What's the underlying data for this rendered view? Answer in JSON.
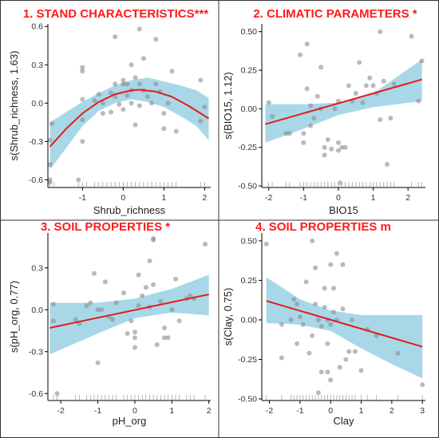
{
  "colors": {
    "band": "#a8d8e8",
    "line": "#e41a1c",
    "points": "#8c8c8c",
    "title": "#ff1a1a"
  },
  "chart_data": [
    {
      "type": "scatter",
      "title": "1. STAND CHARACTERISTICS***",
      "xlabel": "Shrub_richness",
      "ylabel": "s(Shrub_richness, 1.63)",
      "xlim": [
        -1.85,
        2.15
      ],
      "ylim": [
        -0.66,
        0.62
      ],
      "xticks": [
        -1,
        0,
        1,
        2
      ],
      "yticks": [
        -0.6,
        -0.3,
        0.0,
        0.3,
        0.6
      ],
      "ytick_labels": [
        "-0.6",
        "-0.3",
        "0.0",
        "0.3",
        "0.6"
      ],
      "fit": [
        [
          -1.8,
          -0.34
        ],
        [
          -1.4,
          -0.2
        ],
        [
          -1.0,
          -0.08
        ],
        [
          -0.6,
          0.01
        ],
        [
          -0.2,
          0.07
        ],
        [
          0.2,
          0.1
        ],
        [
          0.4,
          0.105
        ],
        [
          0.8,
          0.09
        ],
        [
          1.2,
          0.05
        ],
        [
          1.6,
          -0.02
        ],
        [
          2.1,
          -0.12
        ]
      ],
      "band_upper": [
        [
          -1.8,
          -0.15
        ],
        [
          -1.4,
          -0.07
        ],
        [
          -1.0,
          0.01
        ],
        [
          -0.6,
          0.08
        ],
        [
          -0.2,
          0.14
        ],
        [
          0.2,
          0.18
        ],
        [
          0.6,
          0.2
        ],
        [
          1.0,
          0.17
        ],
        [
          1.4,
          0.14
        ],
        [
          1.8,
          0.1
        ],
        [
          2.1,
          0.04
        ]
      ],
      "band_lower": [
        [
          -1.8,
          -0.52
        ],
        [
          -1.4,
          -0.35
        ],
        [
          -1.0,
          -0.18
        ],
        [
          -0.6,
          -0.06
        ],
        [
          -0.2,
          0.0
        ],
        [
          0.2,
          0.03
        ],
        [
          0.6,
          0.01
        ],
        [
          1.0,
          -0.03
        ],
        [
          1.4,
          -0.1
        ],
        [
          1.8,
          -0.18
        ],
        [
          2.1,
          -0.29
        ]
      ],
      "points": [
        [
          -1.8,
          -0.6
        ],
        [
          -1.8,
          -0.62
        ],
        [
          -1.8,
          -0.48
        ],
        [
          -1.8,
          -0.29
        ],
        [
          -1.75,
          -0.16
        ],
        [
          -1.1,
          -0.6
        ],
        [
          -1.0,
          0.28
        ],
        [
          -1.0,
          0.25
        ],
        [
          -1.0,
          0.03
        ],
        [
          -1.0,
          -0.3
        ],
        [
          -1.0,
          -0.13
        ],
        [
          -0.7,
          0.02
        ],
        [
          -0.6,
          0.07
        ],
        [
          -0.5,
          0.0
        ],
        [
          -0.5,
          -0.08
        ],
        [
          -0.3,
          0.08
        ],
        [
          -0.3,
          -0.07
        ],
        [
          -0.2,
          0.52
        ],
        [
          -0.2,
          0.05
        ],
        [
          -0.2,
          0.15
        ],
        [
          -0.1,
          -0.01
        ],
        [
          0.0,
          0.15
        ],
        [
          0.0,
          0.18
        ],
        [
          0.0,
          -0.05
        ],
        [
          0.1,
          0.15
        ],
        [
          0.1,
          0.06
        ],
        [
          0.2,
          0.3
        ],
        [
          0.2,
          0.1
        ],
        [
          0.2,
          0.0
        ],
        [
          0.3,
          0.2
        ],
        [
          0.3,
          -0.17
        ],
        [
          0.4,
          0.58
        ],
        [
          0.4,
          0.15
        ],
        [
          0.4,
          -0.02
        ],
        [
          0.5,
          0.35
        ],
        [
          0.5,
          0.1
        ],
        [
          0.6,
          0.05
        ],
        [
          0.7,
          0.0
        ],
        [
          0.8,
          0.5
        ],
        [
          0.8,
          0.15
        ],
        [
          0.9,
          0.09
        ],
        [
          1.0,
          -0.08
        ],
        [
          1.0,
          -0.2
        ],
        [
          1.1,
          0.0
        ],
        [
          1.2,
          0.25
        ],
        [
          1.3,
          -0.22
        ],
        [
          1.9,
          0.18
        ],
        [
          1.9,
          -0.14
        ],
        [
          2.0,
          -0.03
        ]
      ],
      "rug": [
        -1.8,
        -1.7,
        -1.1,
        -1.0,
        -0.9,
        -0.7,
        -0.6,
        -0.5,
        -0.4,
        -0.3,
        -0.2,
        -0.1,
        0.0,
        0.1,
        0.2,
        0.3,
        0.4,
        0.5,
        0.6,
        0.7,
        0.8,
        0.9,
        1.0,
        1.1,
        1.2,
        1.3,
        1.9,
        2.0
      ]
    },
    {
      "type": "scatter",
      "title": "2. CLIMATIC PARAMETERS *",
      "xlabel": "BIO15",
      "ylabel": "s(BIO15, 1.12)",
      "xlim": [
        -2.2,
        2.5
      ],
      "ylim": [
        -0.51,
        0.55
      ],
      "xticks": [
        -2,
        -1,
        0,
        1,
        2
      ],
      "yticks": [
        -0.5,
        -0.25,
        0.0,
        0.25,
        0.5
      ],
      "ytick_labels": [
        "-0.50",
        "-0.25",
        "0.00",
        "0.25",
        "0.50"
      ],
      "fit": [
        [
          -2.1,
          -0.1
        ],
        [
          2.4,
          0.19
        ]
      ],
      "band_upper": [
        [
          -2.1,
          0.03
        ],
        [
          -1.0,
          0.03
        ],
        [
          0.0,
          0.04
        ],
        [
          1.0,
          0.1
        ],
        [
          2.4,
          0.32
        ]
      ],
      "band_lower": [
        [
          -2.1,
          -0.22
        ],
        [
          -1.0,
          -0.13
        ],
        [
          0.0,
          -0.04
        ],
        [
          1.0,
          0.01
        ],
        [
          2.4,
          0.05
        ]
      ],
      "points": [
        [
          -2.0,
          0.04
        ],
        [
          -1.9,
          -0.05
        ],
        [
          -1.5,
          -0.16
        ],
        [
          -1.4,
          -0.16
        ],
        [
          -1.1,
          0.35
        ],
        [
          -1.0,
          -0.16
        ],
        [
          -1.0,
          -0.22
        ],
        [
          -0.9,
          0.42
        ],
        [
          -0.9,
          0.13
        ],
        [
          -0.8,
          0.02
        ],
        [
          -0.8,
          -0.11
        ],
        [
          -0.7,
          -0.06
        ],
        [
          -0.6,
          0.08
        ],
        [
          -0.5,
          0.27
        ],
        [
          -0.5,
          0.0
        ],
        [
          -0.4,
          -0.3
        ],
        [
          -0.4,
          -0.25
        ],
        [
          -0.3,
          -0.2
        ],
        [
          -0.2,
          -0.26
        ],
        [
          -0.1,
          0.0
        ],
        [
          0.0,
          0.05
        ],
        [
          0.0,
          -0.22
        ],
        [
          0.0,
          -0.27
        ],
        [
          0.05,
          -0.48
        ],
        [
          0.1,
          -0.25
        ],
        [
          0.2,
          -0.25
        ],
        [
          0.3,
          0.15
        ],
        [
          0.4,
          0.05
        ],
        [
          0.5,
          0.1
        ],
        [
          0.6,
          0.3
        ],
        [
          0.7,
          0.04
        ],
        [
          0.8,
          0.15
        ],
        [
          0.9,
          0.2
        ],
        [
          1.0,
          0.15
        ],
        [
          1.1,
          0.1
        ],
        [
          1.2,
          0.5
        ],
        [
          1.2,
          -0.07
        ],
        [
          1.3,
          0.18
        ],
        [
          1.4,
          -0.36
        ],
        [
          1.5,
          -0.06
        ],
        [
          1.6,
          0.16
        ],
        [
          2.1,
          0.47
        ],
        [
          2.3,
          0.05
        ],
        [
          2.4,
          0.31
        ]
      ],
      "rug": [
        -2.0,
        -1.9,
        -1.5,
        -1.4,
        -1.1,
        -1.0,
        -0.9,
        -0.8,
        -0.7,
        -0.6,
        -0.5,
        -0.4,
        -0.3,
        -0.2,
        -0.1,
        0.0,
        0.1,
        0.2,
        0.3,
        0.4,
        0.5,
        0.6,
        0.7,
        0.8,
        0.9,
        1.0,
        1.1,
        1.2,
        1.3,
        1.4,
        1.5,
        1.6,
        2.1,
        2.3,
        2.4
      ]
    },
    {
      "type": "scatter",
      "title": "3. SOIL PROPERTIES *",
      "xlabel": "pH_org",
      "ylabel": "s(pH_org, 0.77)",
      "xlim": [
        -2.35,
        2.05
      ],
      "ylim": [
        -0.65,
        0.55
      ],
      "xticks": [
        -2,
        -1,
        0,
        1,
        2
      ],
      "yticks": [
        -0.6,
        -0.3,
        0.0,
        0.3
      ],
      "ytick_labels": [
        "-0.6",
        "-0.3",
        "0.0",
        "0.3"
      ],
      "fit": [
        [
          -2.3,
          -0.13
        ],
        [
          2.0,
          0.11
        ]
      ],
      "band_upper": [
        [
          -2.3,
          0.05
        ],
        [
          -1.0,
          0.05
        ],
        [
          0.0,
          0.08
        ],
        [
          1.0,
          0.15
        ],
        [
          2.0,
          0.25
        ]
      ],
      "band_lower": [
        [
          -2.3,
          -0.32
        ],
        [
          -1.0,
          -0.17
        ],
        [
          0.0,
          -0.06
        ],
        [
          1.0,
          -0.02
        ],
        [
          2.0,
          -0.04
        ]
      ],
      "points": [
        [
          -2.2,
          0.04
        ],
        [
          -2.2,
          -0.08
        ],
        [
          -2.1,
          -0.6
        ],
        [
          -1.6,
          -0.07
        ],
        [
          -1.5,
          -0.1
        ],
        [
          -1.3,
          0.03
        ],
        [
          -1.2,
          0.05
        ],
        [
          -1.1,
          0.26
        ],
        [
          -1.0,
          -0.38
        ],
        [
          -1.0,
          0.0
        ],
        [
          -0.9,
          0.0
        ],
        [
          -0.8,
          0.2
        ],
        [
          -0.7,
          -0.05
        ],
        [
          -0.6,
          -0.07
        ],
        [
          -0.5,
          0.05
        ],
        [
          -0.3,
          0.12
        ],
        [
          -0.2,
          -0.17
        ],
        [
          -0.1,
          -0.08
        ],
        [
          0.0,
          -0.2
        ],
        [
          0.0,
          -0.27
        ],
        [
          0.0,
          -0.16
        ],
        [
          0.1,
          0.25
        ],
        [
          0.1,
          0.03
        ],
        [
          0.2,
          0.1
        ],
        [
          0.3,
          0.16
        ],
        [
          0.4,
          0.35
        ],
        [
          0.4,
          0.02
        ],
        [
          0.5,
          0.51
        ],
        [
          0.5,
          0.5
        ],
        [
          0.5,
          0.18
        ],
        [
          0.6,
          -0.25
        ],
        [
          0.7,
          0.06
        ],
        [
          0.8,
          -0.13
        ],
        [
          0.8,
          -0.2
        ],
        [
          0.9,
          -0.2
        ],
        [
          1.0,
          0.0
        ],
        [
          1.1,
          0.22
        ],
        [
          1.2,
          -0.08
        ],
        [
          1.4,
          0.08
        ],
        [
          1.5,
          0.1
        ],
        [
          1.6,
          0.08
        ],
        [
          1.9,
          0.47
        ]
      ],
      "rug": [
        -2.2,
        -2.1,
        -1.6,
        -1.5,
        -1.3,
        -1.2,
        -1.1,
        -1.0,
        -0.9,
        -0.8,
        -0.7,
        -0.6,
        -0.5,
        -0.3,
        -0.2,
        -0.1,
        0.0,
        0.1,
        0.2,
        0.3,
        0.4,
        0.5,
        0.6,
        0.7,
        0.8,
        0.9,
        1.0,
        1.1,
        1.2,
        1.4,
        1.5,
        1.6,
        1.9
      ]
    },
    {
      "type": "scatter",
      "title": "4. SOIL PROPERTIES m",
      "xlabel": "Clay",
      "ylabel": "s(Clay, 0.75)",
      "xlim": [
        -2.25,
        3.1
      ],
      "ylim": [
        -0.51,
        0.55
      ],
      "xticks": [
        -2,
        -1,
        0,
        1,
        2,
        3
      ],
      "yticks": [
        -0.5,
        -0.25,
        0.0,
        0.25,
        0.5
      ],
      "ytick_labels": [
        "-0.50",
        "-0.25",
        "0.00",
        "0.25",
        "0.50"
      ],
      "fit": [
        [
          -2.1,
          0.12
        ],
        [
          3.0,
          -0.17
        ]
      ],
      "band_upper": [
        [
          -2.1,
          0.27
        ],
        [
          -1.0,
          0.13
        ],
        [
          0.0,
          0.06
        ],
        [
          1.0,
          0.03
        ],
        [
          2.0,
          0.03
        ],
        [
          3.0,
          0.03
        ]
      ],
      "band_lower": [
        [
          -2.1,
          -0.02
        ],
        [
          -1.0,
          -0.03
        ],
        [
          0.0,
          -0.07
        ],
        [
          1.0,
          -0.18
        ],
        [
          2.0,
          -0.28
        ],
        [
          3.0,
          -0.37
        ]
      ],
      "points": [
        [
          -2.1,
          0.48
        ],
        [
          -1.6,
          -0.03
        ],
        [
          -1.6,
          -0.24
        ],
        [
          -1.3,
          0.0
        ],
        [
          -1.2,
          0.13
        ],
        [
          -1.1,
          0.1
        ],
        [
          -1.1,
          -0.15
        ],
        [
          -1.0,
          0.02
        ],
        [
          -0.9,
          -0.03
        ],
        [
          -0.8,
          0.24
        ],
        [
          -0.7,
          -0.21
        ],
        [
          -0.6,
          0.5
        ],
        [
          -0.6,
          -0.1
        ],
        [
          -0.5,
          0.33
        ],
        [
          -0.5,
          0.1
        ],
        [
          -0.4,
          0.0
        ],
        [
          -0.4,
          -0.46
        ],
        [
          -0.3,
          -0.33
        ],
        [
          -0.3,
          -0.04
        ],
        [
          -0.2,
          0.2
        ],
        [
          -0.2,
          0.08
        ],
        [
          -0.1,
          0.0
        ],
        [
          -0.1,
          -0.15
        ],
        [
          -0.1,
          -0.33
        ],
        [
          0.0,
          0.35
        ],
        [
          0.0,
          -0.03
        ],
        [
          0.0,
          -0.38
        ],
        [
          0.1,
          0.2
        ],
        [
          0.1,
          0.05
        ],
        [
          0.2,
          0.42
        ],
        [
          0.2,
          0.0
        ],
        [
          0.3,
          -0.3
        ],
        [
          0.4,
          0.35
        ],
        [
          0.4,
          0.07
        ],
        [
          0.5,
          -0.25
        ],
        [
          0.6,
          -0.2
        ],
        [
          0.7,
          0.0
        ],
        [
          0.8,
          -0.2
        ],
        [
          1.0,
          -0.32
        ],
        [
          1.2,
          -0.06
        ],
        [
          1.5,
          -0.1
        ],
        [
          2.2,
          -0.21
        ],
        [
          3.0,
          -0.41
        ]
      ],
      "rug": [
        -2.1,
        -1.6,
        -1.3,
        -1.2,
        -1.1,
        -1.0,
        -0.9,
        -0.8,
        -0.7,
        -0.6,
        -0.5,
        -0.4,
        -0.3,
        -0.2,
        -0.1,
        0.0,
        0.1,
        0.2,
        0.3,
        0.4,
        0.5,
        0.6,
        0.7,
        0.8,
        1.0,
        1.2,
        1.5,
        2.2,
        3.0
      ]
    }
  ]
}
